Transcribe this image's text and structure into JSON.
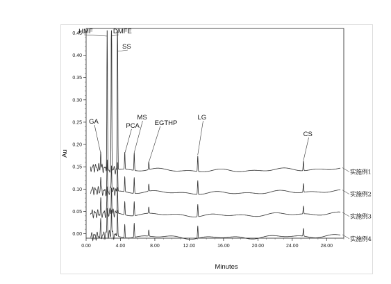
{
  "chart_data": {
    "type": "line",
    "xlabel": "Minutes",
    "ylabel": "Au",
    "xlim": [
      0,
      30
    ],
    "ylim": [
      -0.01,
      0.46
    ],
    "x_ticks": [
      0,
      4,
      8,
      12,
      16,
      20,
      24,
      28
    ],
    "x_tick_labels": [
      "0.00",
      "4.00",
      "8.00",
      "12.00",
      "16.00",
      "20.00",
      "24.00",
      "28.00"
    ],
    "y_ticks": [
      0.0,
      0.05,
      0.1,
      0.15,
      0.2,
      0.25,
      0.3,
      0.35,
      0.4,
      0.45
    ],
    "y_tick_labels": [
      "0.00",
      "0.05",
      "0.10",
      "0.15",
      "0.20",
      "0.25",
      "0.30",
      "0.35",
      "0.40",
      "0.45"
    ],
    "grid": false,
    "series": [
      {
        "name": "实施例1",
        "baseline": 0.145
      },
      {
        "name": "实施例2",
        "baseline": 0.095
      },
      {
        "name": "实施例3",
        "baseline": 0.045
      },
      {
        "name": "实施例4",
        "baseline": -0.005
      }
    ],
    "peaks": [
      {
        "label": "GA",
        "x": 1.7,
        "height": 0.038
      },
      {
        "label": "HMF",
        "x": 2.45,
        "height": 0.33
      },
      {
        "label": "DMFE",
        "x": 2.95,
        "height": 0.41
      },
      {
        "label": "SS",
        "x": 3.65,
        "height": 0.4
      },
      {
        "label": "PCA",
        "x": 4.5,
        "height": 0.038
      },
      {
        "label": "MS",
        "x": 5.6,
        "height": 0.04
      },
      {
        "label": "EGTHP",
        "x": 7.3,
        "height": 0.018
      },
      {
        "label": "LG",
        "x": 13.0,
        "height": 0.035
      },
      {
        "label": "CS",
        "x": 25.3,
        "height": 0.022
      }
    ]
  }
}
